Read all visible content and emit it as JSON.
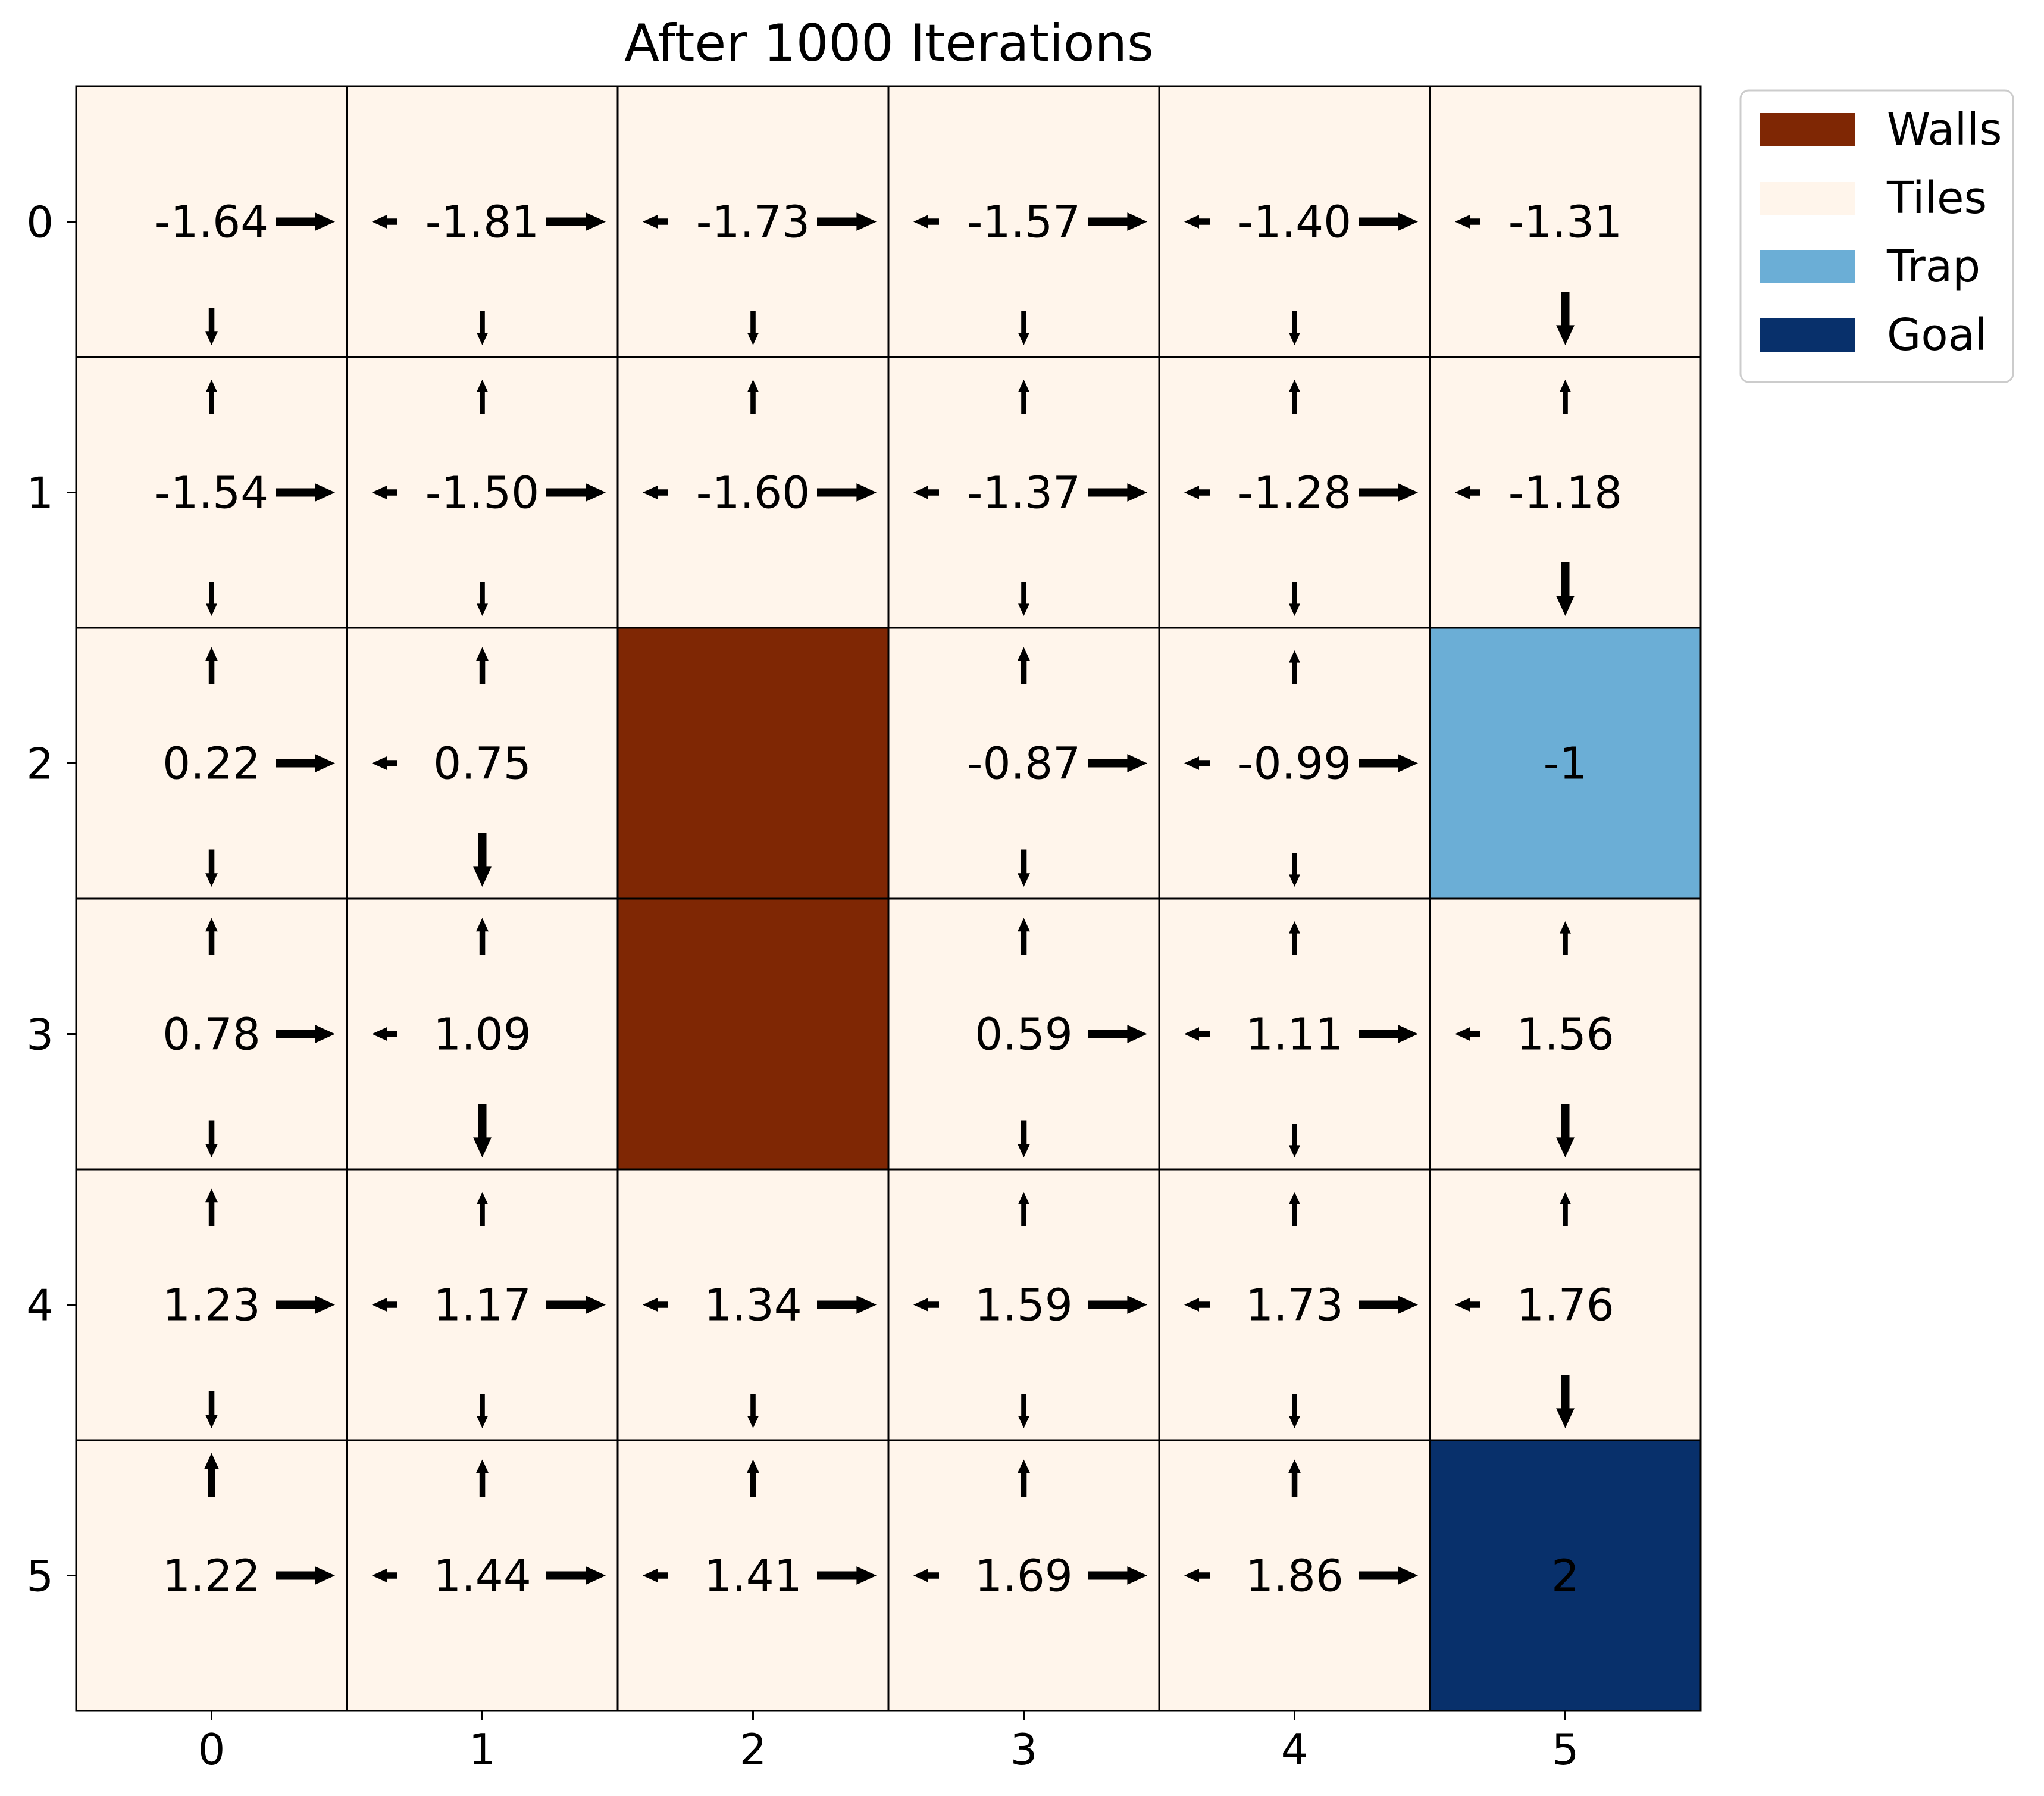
{
  "chart_data": {
    "type": "heatmap",
    "title": "After 1000 Iterations",
    "xlabel": "",
    "ylabel": "",
    "x_ticks": [
      "0",
      "1",
      "2",
      "3",
      "4",
      "5"
    ],
    "y_ticks": [
      "0",
      "1",
      "2",
      "3",
      "4",
      "5"
    ],
    "colors": {
      "Walls": "#7f2704",
      "Tiles": "#fff5eb",
      "Trap": "#6baed6",
      "Goal": "#08306b"
    },
    "legend": {
      "placement": "outside-top-right",
      "entries": [
        "Walls",
        "Tiles",
        "Trap",
        "Goal"
      ]
    },
    "cell_types": [
      [
        "Tiles",
        "Tiles",
        "Tiles",
        "Tiles",
        "Tiles",
        "Tiles"
      ],
      [
        "Tiles",
        "Tiles",
        "Tiles",
        "Tiles",
        "Tiles",
        "Tiles"
      ],
      [
        "Tiles",
        "Tiles",
        "Walls",
        "Tiles",
        "Tiles",
        "Trap"
      ],
      [
        "Tiles",
        "Tiles",
        "Walls",
        "Tiles",
        "Tiles",
        "Tiles"
      ],
      [
        "Tiles",
        "Tiles",
        "Tiles",
        "Tiles",
        "Tiles",
        "Tiles"
      ],
      [
        "Tiles",
        "Tiles",
        "Tiles",
        "Tiles",
        "Tiles",
        "Goal"
      ]
    ],
    "values": [
      [
        "-1.64",
        "-1.81",
        "-1.73",
        "-1.57",
        "-1.40",
        "-1.31"
      ],
      [
        "-1.54",
        "-1.50",
        "-1.60",
        "-1.37",
        "-1.28",
        "-1.18"
      ],
      [
        "0.22",
        "0.75",
        "",
        "-0.87",
        "-0.99",
        "-1"
      ],
      [
        "0.78",
        "1.09",
        "",
        "0.59",
        "1.11",
        "1.56"
      ],
      [
        "1.23",
        "1.17",
        "1.34",
        "1.59",
        "1.73",
        "1.76"
      ],
      [
        "1.22",
        "1.44",
        "1.41",
        "1.69",
        "1.86",
        "2"
      ]
    ],
    "policy_arrows": [
      [
        {
          "up": 0,
          "down": 0.5,
          "left": 0,
          "right": 1.0
        },
        {
          "up": 0,
          "down": 0.4,
          "left": 0.6,
          "right": 1.0
        },
        {
          "up": 0,
          "down": 0.4,
          "left": 0.6,
          "right": 1.0
        },
        {
          "up": 0,
          "down": 0.4,
          "left": 0.6,
          "right": 1.0
        },
        {
          "up": 0,
          "down": 0.4,
          "left": 0.6,
          "right": 1.0
        },
        {
          "up": 0,
          "down": 1.0,
          "left": 0.6,
          "right": 0
        }
      ],
      [
        {
          "up": 0.4,
          "down": 0.4,
          "left": 0,
          "right": 1.0
        },
        {
          "up": 0.4,
          "down": 0.4,
          "left": 0.6,
          "right": 1.0
        },
        {
          "up": 0.4,
          "down": 0,
          "left": 0.6,
          "right": 1.0
        },
        {
          "up": 0.4,
          "down": 0.4,
          "left": 0.6,
          "right": 1.0
        },
        {
          "up": 0.4,
          "down": 0.4,
          "left": 0.6,
          "right": 1.0
        },
        {
          "up": 0.4,
          "down": 1.0,
          "left": 0.6,
          "right": 0
        }
      ],
      [
        {
          "up": 0.5,
          "down": 0.5,
          "left": 0,
          "right": 1.0
        },
        {
          "up": 0.5,
          "down": 1.0,
          "left": 0.6,
          "right": 0
        },
        null,
        {
          "up": 0.5,
          "down": 0.5,
          "left": 0,
          "right": 1.0
        },
        {
          "up": 0.4,
          "down": 0.4,
          "left": 0.6,
          "right": 1.0
        },
        null
      ],
      [
        {
          "up": 0.5,
          "down": 0.5,
          "left": 0,
          "right": 1.0
        },
        {
          "up": 0.5,
          "down": 1.0,
          "left": 0.6,
          "right": 0
        },
        null,
        {
          "up": 0.5,
          "down": 0.5,
          "left": 0,
          "right": 1.0
        },
        {
          "up": 0.4,
          "down": 0.4,
          "left": 0.6,
          "right": 1.0
        },
        {
          "up": 0.4,
          "down": 1.0,
          "left": 0.6,
          "right": 0
        }
      ],
      [
        {
          "up": 0.5,
          "down": 0.5,
          "left": 0,
          "right": 1.0
        },
        {
          "up": 0.4,
          "down": 0.4,
          "left": 0.6,
          "right": 1.0
        },
        {
          "up": 0,
          "down": 0.4,
          "left": 0.6,
          "right": 1.0
        },
        {
          "up": 0.4,
          "down": 0.4,
          "left": 0.6,
          "right": 1.0
        },
        {
          "up": 0.4,
          "down": 0.4,
          "left": 0.6,
          "right": 1.0
        },
        {
          "up": 0.4,
          "down": 1.0,
          "left": 0.6,
          "right": 0
        }
      ],
      [
        {
          "up": 0.7,
          "down": 0,
          "left": 0,
          "right": 1.0
        },
        {
          "up": 0.5,
          "down": 0,
          "left": 0.6,
          "right": 1.0
        },
        {
          "up": 0.5,
          "down": 0,
          "left": 0.6,
          "right": 1.0
        },
        {
          "up": 0.5,
          "down": 0,
          "left": 0.6,
          "right": 1.0
        },
        {
          "up": 0.5,
          "down": 0,
          "left": 0.6,
          "right": 1.0
        },
        null
      ]
    ]
  }
}
